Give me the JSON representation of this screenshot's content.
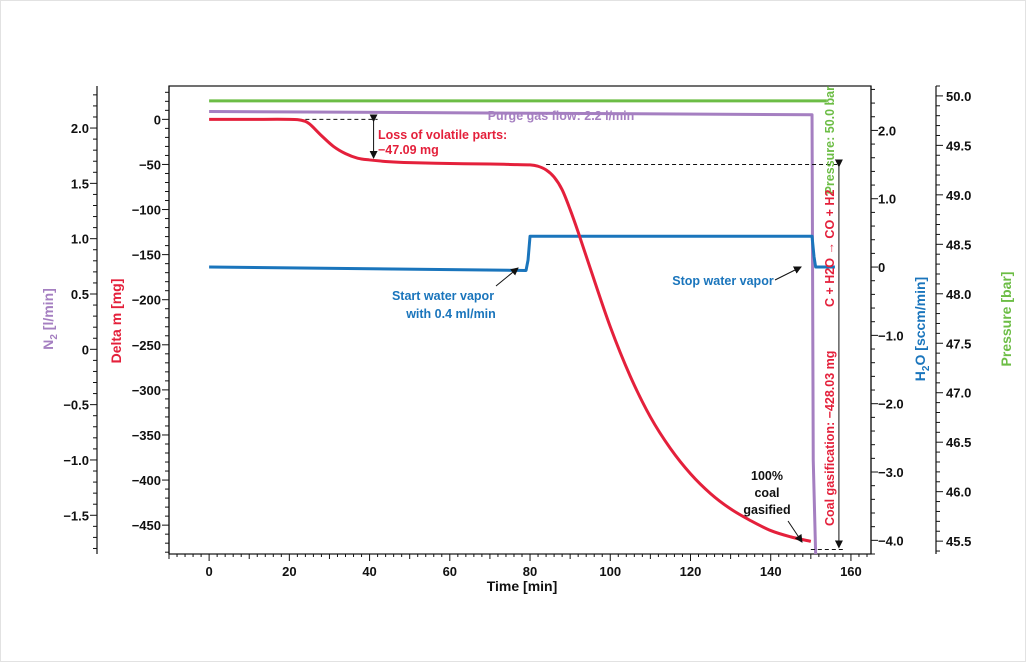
{
  "chart_data": {
    "type": "line",
    "title": "",
    "xlabel": "Time [min]",
    "xlim": [
      -10,
      165
    ],
    "x_ticks": [
      0,
      20,
      40,
      60,
      80,
      100,
      120,
      140,
      160
    ],
    "axes": {
      "n2": {
        "label_main": "N",
        "label_sub": "2",
        "label_rest": " [l/min]",
        "ylim": [
          -1.85,
          2.38
        ],
        "ticks": [
          2.0,
          1.5,
          1.0,
          0.5,
          0,
          -0.5,
          -1.0,
          -1.5
        ],
        "tick_labels": [
          "2.0",
          "1.5",
          "1.0",
          "0.5",
          "0",
          "−0.5",
          "−1.0",
          "−1.5"
        ],
        "color": "#a57fc1"
      },
      "delta_m": {
        "label": "Delta m [mg]",
        "ylim": [
          -482,
          37
        ],
        "ticks": [
          0,
          -50,
          -100,
          -150,
          -200,
          -250,
          -300,
          -350,
          -400,
          -450
        ],
        "tick_labels": [
          "0",
          "−50",
          "−100",
          "−150",
          "−200",
          "−250",
          "−300",
          "−350",
          "−400",
          "−450"
        ],
        "color": "#e4203b"
      },
      "h2o": {
        "label_main": "H",
        "label_sub": "2",
        "label_rest": "O [sccm/min]",
        "ylim": [
          -4.2,
          2.65
        ],
        "ticks": [
          2.0,
          1.0,
          0,
          -1.0,
          -2.0,
          -3.0,
          -4.0
        ],
        "tick_labels": [
          "2.0",
          "1.0",
          "0",
          "−1.0",
          "−2.0",
          "−3.0",
          "−4.0"
        ],
        "color": "#1a75bc"
      },
      "pressure": {
        "label": "Pressure [bar]",
        "ylim": [
          45.37,
          50.1
        ],
        "ticks": [
          50.0,
          49.5,
          49.0,
          48.5,
          48.0,
          47.5,
          47.0,
          46.5,
          46.0,
          45.5
        ],
        "tick_labels": [
          "50.0",
          "49.5",
          "49.0",
          "48.5",
          "48.0",
          "47.5",
          "47.0",
          "46.5",
          "46.0",
          "45.5"
        ],
        "color": "#6cbd45"
      }
    },
    "series": [
      {
        "name": "Purge gas flow",
        "axis": "n2",
        "color": "#a57fc1",
        "x": [
          0,
          150.3,
          150.6,
          151.2
        ],
        "y": [
          2.15,
          2.12,
          -1.0,
          -1.85
        ]
      },
      {
        "name": "Pressure",
        "axis": "pressure",
        "color": "#6cbd45",
        "x": [
          0,
          154
        ],
        "y": [
          49.95,
          49.95
        ]
      },
      {
        "name": "Water vapor",
        "axis": "h2o",
        "color": "#1a75bc",
        "x": [
          0,
          79,
          79.5,
          80,
          150.3,
          150.8,
          151.2,
          156
        ],
        "y": [
          0,
          -0.05,
          0.1,
          0.45,
          0.45,
          0.15,
          0.0,
          0.0
        ]
      },
      {
        "name": "Delta m",
        "axis": "delta_m",
        "color": "#e4203b",
        "x": [
          0,
          10,
          20,
          23,
          25,
          28,
          31,
          34,
          37,
          40,
          45,
          50,
          60,
          70,
          75,
          80,
          82,
          84,
          86,
          88,
          90,
          92,
          95,
          100,
          105,
          110,
          115,
          120,
          125,
          130,
          135,
          140,
          145,
          150
        ],
        "y": [
          0,
          0,
          0,
          -1,
          -5,
          -18,
          -30,
          -38,
          -43,
          -45,
          -47,
          -48,
          -49,
          -49.5,
          -50,
          -50.5,
          -52,
          -56,
          -64,
          -78,
          -100,
          -125,
          -165,
          -230,
          -285,
          -330,
          -365,
          -393,
          -415,
          -432,
          -445,
          -456,
          -463,
          -468
        ]
      }
    ],
    "annotations": {
      "purge": "Purge gas flow: 2.2 l/min",
      "loss_line1": "Loss of volatile parts:",
      "loss_line2": "−47.09 mg",
      "start_line1": "Start water vapor",
      "start_line2": "with 0.4 ml/min",
      "stop": "Stop water vapor",
      "pressure": "Pressure: 50.0 bar",
      "gasification": "Coal gasification: −428.03 mg",
      "reaction": "C + H2O → CO + H2",
      "gasified_line1": "100%",
      "gasified_line2": "coal",
      "gasified_line3": "gasified"
    }
  }
}
